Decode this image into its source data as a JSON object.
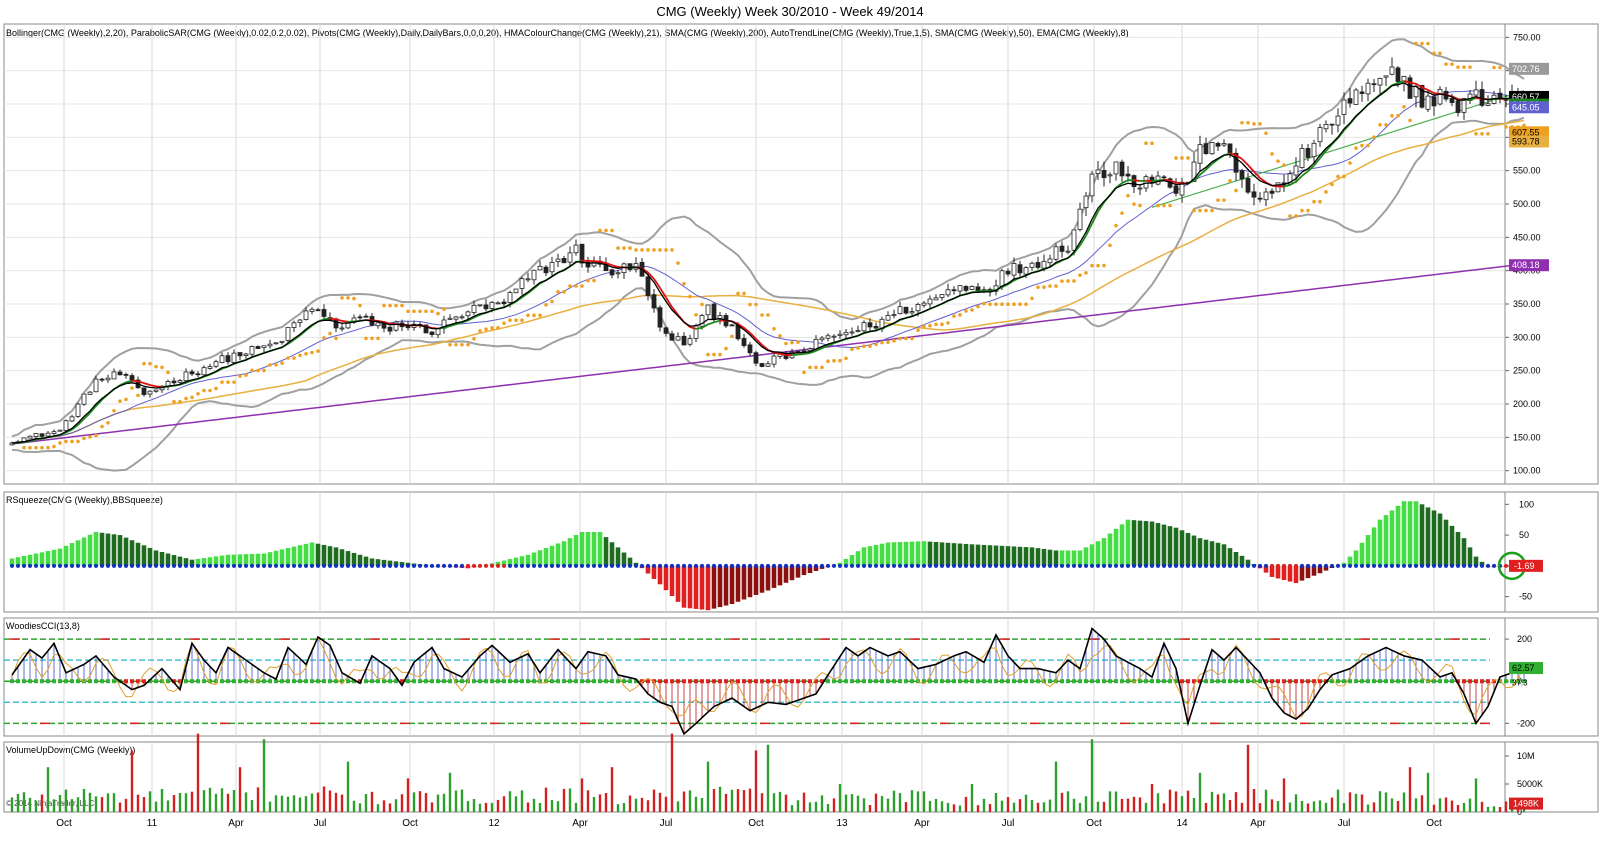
{
  "title": "CMG (Weekly)  Week 30/2010 - Week 49/2014",
  "copyright": "© 2014 NinjaTrader, LLC",
  "colors": {
    "up": "#2e9e2e",
    "down": "#d42020",
    "hma_up": "#1a8a1a",
    "hma_down": "#e01010",
    "bollinger": "#a0a0a0",
    "sar": "#f0a020",
    "sma200": "#9030b0",
    "sma50": "#e8b040",
    "ema8": "#000000",
    "sma20": "#6060d0",
    "trend": "#4caf50",
    "squeeze_light": "#44dd44",
    "squeeze_dark": "#1f6b1f",
    "squeeze_red": "#e02020",
    "squeeze_darkred": "#8b1010",
    "cci_line": "#000000",
    "cci_turbo": "#e0a030",
    "vol_up": "#2e9e2e",
    "vol_down": "#d42020"
  },
  "chart_data": [
    {
      "panel": "price",
      "type": "candlestick",
      "indicators_legend": "Bollinger(CMG (Weekly),2,20), ParabolicSAR(CMG (Weekly),0.02,0.2,0.02), Pivots(CMG (Weekly),Daily,DailyBars,0,0,0,20), HMAColourChange(CMG (Weekly),21), SMA(CMG (Weekly),200), AutoTrendLine(CMG (Weekly),True,1,5), SMA(CMG (Weekly),50), EMA(CMG (Weekly),8)",
      "ylim": [
        80,
        770
      ],
      "y_ticks": [
        "750.00",
        "700.00",
        "650.00",
        "600.00",
        "550.00",
        "500.00",
        "450.00",
        "400.00",
        "350.00",
        "300.00",
        "250.00",
        "200.00",
        "150.00",
        "100.00"
      ],
      "x_ticks": [
        "Oct",
        "11",
        "Apr",
        "Jul",
        "Oct",
        "12",
        "Apr",
        "Jul",
        "Oct",
        "13",
        "Apr",
        "Jul",
        "Oct",
        "14",
        "Apr",
        "Jul",
        "Oct"
      ],
      "close_waypoints": [
        [
          0,
          145
        ],
        [
          8,
          160
        ],
        [
          14,
          235
        ],
        [
          18,
          245
        ],
        [
          22,
          215
        ],
        [
          28,
          240
        ],
        [
          36,
          270
        ],
        [
          44,
          290
        ],
        [
          50,
          345
        ],
        [
          54,
          315
        ],
        [
          58,
          330
        ],
        [
          62,
          310
        ],
        [
          64,
          320
        ],
        [
          70,
          310
        ],
        [
          76,
          340
        ],
        [
          82,
          350
        ],
        [
          86,
          390
        ],
        [
          90,
          410
        ],
        [
          94,
          430
        ],
        [
          96,
          410
        ],
        [
          100,
          400
        ],
        [
          104,
          405
        ],
        [
          106,
          370
        ],
        [
          108,
          310
        ],
        [
          112,
          290
        ],
        [
          116,
          340
        ],
        [
          120,
          320
        ],
        [
          124,
          255
        ],
        [
          128,
          270
        ],
        [
          132,
          280
        ],
        [
          136,
          300
        ],
        [
          140,
          310
        ],
        [
          144,
          320
        ],
        [
          148,
          340
        ],
        [
          152,
          350
        ],
        [
          156,
          370
        ],
        [
          160,
          380
        ],
        [
          162,
          370
        ],
        [
          166,
          400
        ],
        [
          170,
          410
        ],
        [
          176,
          440
        ],
        [
          180,
          540
        ],
        [
          184,
          560
        ],
        [
          188,
          530
        ],
        [
          192,
          545
        ],
        [
          194,
          510
        ],
        [
          198,
          575
        ],
        [
          200,
          600
        ],
        [
          202,
          580
        ],
        [
          206,
          520
        ],
        [
          210,
          510
        ],
        [
          214,
          560
        ],
        [
          218,
          600
        ],
        [
          222,
          650
        ],
        [
          226,
          670
        ],
        [
          230,
          690
        ],
        [
          234,
          670
        ],
        [
          236,
          650
        ],
        [
          238,
          670
        ],
        [
          240,
          640
        ],
        [
          242,
          655
        ],
        [
          246,
          661
        ]
      ],
      "last_values": {
        "close": "660.57",
        "bb_upper": "702.76",
        "ema8": "648.99",
        "bb_mid": "645.05",
        "sar": "607.55",
        "sma50": "593.78",
        "sma200": "408.18"
      }
    },
    {
      "panel": "squeeze",
      "type": "bar",
      "label": "RSqueeze(CMG (Weekly),BBSqueeze)",
      "ylim": [
        -75,
        120
      ],
      "y_ticks": [
        "100",
        "50",
        "0",
        "-50"
      ],
      "histogram_waypoints": [
        [
          0,
          12
        ],
        [
          8,
          28
        ],
        [
          14,
          55
        ],
        [
          18,
          50
        ],
        [
          24,
          25
        ],
        [
          30,
          10
        ],
        [
          36,
          18
        ],
        [
          42,
          20
        ],
        [
          50,
          38
        ],
        [
          54,
          30
        ],
        [
          60,
          12
        ],
        [
          66,
          5
        ],
        [
          70,
          0
        ],
        [
          76,
          -4
        ],
        [
          80,
          4
        ],
        [
          86,
          18
        ],
        [
          92,
          40
        ],
        [
          95,
          55
        ],
        [
          98,
          55
        ],
        [
          101,
          30
        ],
        [
          104,
          5
        ],
        [
          108,
          -30
        ],
        [
          112,
          -68
        ],
        [
          116,
          -72
        ],
        [
          120,
          -62
        ],
        [
          126,
          -40
        ],
        [
          132,
          -15
        ],
        [
          138,
          5
        ],
        [
          142,
          30
        ],
        [
          146,
          38
        ],
        [
          152,
          40
        ],
        [
          160,
          35
        ],
        [
          166,
          32
        ],
        [
          170,
          30
        ],
        [
          174,
          25
        ],
        [
          178,
          25
        ],
        [
          182,
          45
        ],
        [
          186,
          75
        ],
        [
          190,
          72
        ],
        [
          194,
          62
        ],
        [
          198,
          45
        ],
        [
          202,
          35
        ],
        [
          206,
          10
        ],
        [
          210,
          -18
        ],
        [
          214,
          -28
        ],
        [
          218,
          -12
        ],
        [
          222,
          5
        ],
        [
          224,
          25
        ],
        [
          228,
          75
        ],
        [
          232,
          105
        ],
        [
          234,
          105
        ],
        [
          238,
          85
        ],
        [
          242,
          45
        ],
        [
          244,
          15
        ],
        [
          246,
          -2
        ]
      ],
      "last_value": "-1.69"
    },
    {
      "panel": "cci",
      "type": "line",
      "label": "WoodiesCCI(13,8)",
      "ylim": [
        -260,
        300
      ],
      "y_ticks": [
        "200",
        "0",
        "-200"
      ],
      "bands": [
        200,
        100,
        0,
        -100,
        -200
      ],
      "cci_waypoints": [
        [
          0,
          30
        ],
        [
          3,
          150
        ],
        [
          5,
          110
        ],
        [
          7,
          180
        ],
        [
          9,
          40
        ],
        [
          12,
          80
        ],
        [
          14,
          120
        ],
        [
          17,
          20
        ],
        [
          20,
          -40
        ],
        [
          22,
          -20
        ],
        [
          25,
          60
        ],
        [
          28,
          -40
        ],
        [
          30,
          180
        ],
        [
          32,
          100
        ],
        [
          34,
          40
        ],
        [
          36,
          160
        ],
        [
          39,
          100
        ],
        [
          42,
          40
        ],
        [
          44,
          10
        ],
        [
          46,
          160
        ],
        [
          49,
          80
        ],
        [
          51,
          210
        ],
        [
          53,
          170
        ],
        [
          55,
          40
        ],
        [
          58,
          -10
        ],
        [
          60,
          120
        ],
        [
          63,
          60
        ],
        [
          65,
          -20
        ],
        [
          67,
          90
        ],
        [
          70,
          160
        ],
        [
          72,
          60
        ],
        [
          75,
          20
        ],
        [
          78,
          120
        ],
        [
          80,
          170
        ],
        [
          83,
          90
        ],
        [
          86,
          130
        ],
        [
          88,
          40
        ],
        [
          91,
          150
        ],
        [
          94,
          60
        ],
        [
          96,
          140
        ],
        [
          99,
          120
        ],
        [
          101,
          30
        ],
        [
          104,
          10
        ],
        [
          106,
          -60
        ],
        [
          108,
          -100
        ],
        [
          110,
          -120
        ],
        [
          112,
          -250
        ],
        [
          114,
          -200
        ],
        [
          117,
          -120
        ],
        [
          120,
          -80
        ],
        [
          123,
          -140
        ],
        [
          126,
          -100
        ],
        [
          129,
          -110
        ],
        [
          132,
          -80
        ],
        [
          134,
          -60
        ],
        [
          136,
          30
        ],
        [
          139,
          160
        ],
        [
          141,
          120
        ],
        [
          143,
          160
        ],
        [
          146,
          120
        ],
        [
          148,
          140
        ],
        [
          151,
          60
        ],
        [
          154,
          80
        ],
        [
          157,
          120
        ],
        [
          159,
          140
        ],
        [
          162,
          90
        ],
        [
          164,
          220
        ],
        [
          166,
          120
        ],
        [
          168,
          60
        ],
        [
          171,
          60
        ],
        [
          174,
          40
        ],
        [
          176,
          100
        ],
        [
          178,
          60
        ],
        [
          180,
          250
        ],
        [
          182,
          200
        ],
        [
          184,
          120
        ],
        [
          186,
          90
        ],
        [
          188,
          60
        ],
        [
          190,
          20
        ],
        [
          192,
          180
        ],
        [
          194,
          60
        ],
        [
          196,
          -200
        ],
        [
          198,
          -20
        ],
        [
          200,
          150
        ],
        [
          202,
          100
        ],
        [
          204,
          160
        ],
        [
          206,
          100
        ],
        [
          208,
          40
        ],
        [
          210,
          -80
        ],
        [
          212,
          -150
        ],
        [
          214,
          -180
        ],
        [
          216,
          -130
        ],
        [
          218,
          -40
        ],
        [
          220,
          30
        ],
        [
          223,
          60
        ],
        [
          226,
          120
        ],
        [
          229,
          160
        ],
        [
          232,
          120
        ],
        [
          235,
          100
        ],
        [
          238,
          20
        ],
        [
          240,
          40
        ],
        [
          242,
          -60
        ],
        [
          244,
          -200
        ],
        [
          246,
          -120
        ],
        [
          248,
          20
        ],
        [
          250,
          40
        ],
        [
          252,
          50
        ]
      ],
      "last_values": {
        "cci": "62.57",
        "turbo": "37.3"
      }
    },
    {
      "panel": "volume",
      "type": "bar",
      "label": "VolumeUpDown(CMG (Weekly))",
      "ylim": [
        0,
        12500000
      ],
      "y_ticks": [
        "10M",
        "5000K",
        "0"
      ],
      "volume_waypoints": [
        [
          0,
          2.5
        ],
        [
          10,
          3.2
        ],
        [
          20,
          2.6
        ],
        [
          30,
          3.0
        ],
        [
          40,
          3.2
        ],
        [
          50,
          3.4
        ],
        [
          60,
          2.4
        ],
        [
          70,
          2.6
        ],
        [
          80,
          2.8
        ],
        [
          90,
          3.2
        ],
        [
          100,
          2.2
        ],
        [
          110,
          3.0
        ],
        [
          120,
          3.6
        ],
        [
          130,
          2.4
        ],
        [
          140,
          2.2
        ],
        [
          150,
          2.8
        ],
        [
          160,
          2.2
        ],
        [
          170,
          2.4
        ],
        [
          180,
          3.0
        ],
        [
          190,
          2.6
        ],
        [
          200,
          3.2
        ],
        [
          210,
          2.6
        ],
        [
          220,
          2.4
        ],
        [
          230,
          2.6
        ],
        [
          240,
          2.2
        ],
        [
          246,
          1.5
        ]
      ],
      "volume_spikes": {
        "6": 8,
        "20": 11,
        "31": 14,
        "38": 8,
        "42": 13,
        "56": 9,
        "66": 6,
        "73": 7,
        "95": 6,
        "100": 8,
        "110": 14,
        "116": 9,
        "124": 11,
        "126": 12,
        "138": 5,
        "160": 5,
        "174": 9,
        "180": 13,
        "190": 5,
        "198": 7,
        "206": 12,
        "212": 6,
        "221": 4,
        "233": 8,
        "236": 7,
        "244": 6
      },
      "last_value": "1498K"
    }
  ]
}
